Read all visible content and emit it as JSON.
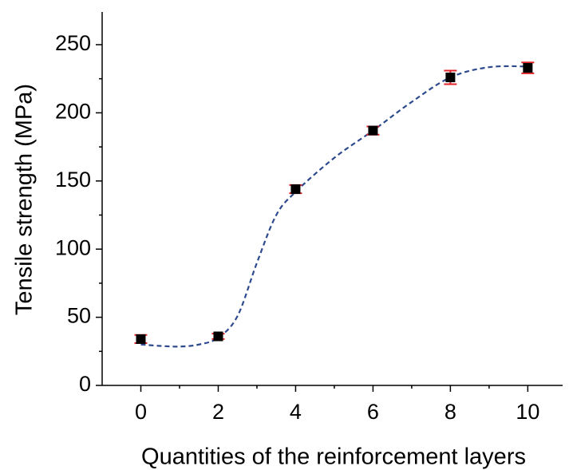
{
  "chart_data": {
    "type": "scatter",
    "x_label": "Quantities of the reinforcement layers",
    "y_label": "Tensile strength (MPa)",
    "x": [
      0,
      2,
      4,
      6,
      8,
      10
    ],
    "values": [
      34,
      36,
      144,
      187,
      226,
      233
    ],
    "errors": [
      3,
      2,
      3,
      3,
      5,
      4
    ],
    "color": "#000000",
    "error_color": "#e0242a",
    "fit": {
      "x": [
        0,
        0.5,
        1,
        1.5,
        2,
        2.5,
        3,
        3.5,
        4,
        5,
        6,
        7,
        8,
        9,
        10
      ],
      "values": [
        30,
        29,
        28.5,
        30,
        35,
        51,
        90,
        125,
        142,
        167,
        187,
        208,
        226,
        233.5,
        234
      ],
      "color": "#2c4a8c",
      "dash": true
    },
    "xlim": [
      -1,
      10.9
    ],
    "ylim": [
      0,
      274
    ],
    "xticks": [
      0,
      2,
      4,
      6,
      8,
      10
    ],
    "yticks": [
      0,
      50,
      100,
      150,
      200,
      250
    ],
    "xminorticks": [
      1,
      3,
      5,
      7,
      9
    ],
    "yminorticks": [
      25,
      75,
      125,
      175,
      225
    ]
  }
}
